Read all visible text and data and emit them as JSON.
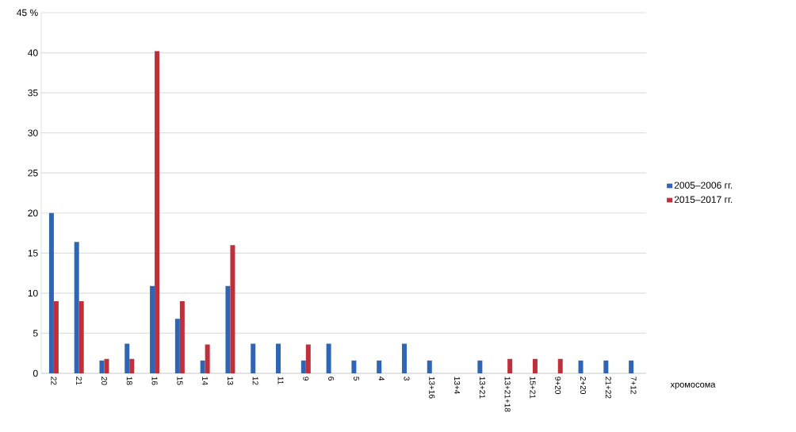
{
  "chart_data": {
    "type": "bar",
    "xlabel": "хромосома",
    "categories": [
      "22",
      "21",
      "20",
      "18",
      "16",
      "15",
      "14",
      "13",
      "12",
      "11",
      "9",
      "6",
      "5",
      "4",
      "3",
      "13+16",
      "13+4",
      "13+21",
      "13+21+18",
      "15+21",
      "9+20",
      "2+20",
      "21+22",
      "7+12"
    ],
    "series": [
      {
        "name": "2005–2006 гг.",
        "color": "#2f65b5",
        "values": [
          20,
          16.4,
          1.6,
          3.7,
          10.9,
          6.8,
          1.6,
          10.9,
          3.7,
          3.7,
          1.6,
          3.7,
          1.6,
          1.6,
          3.7,
          1.6,
          null,
          1.6,
          null,
          null,
          null,
          1.6,
          1.6,
          1.6
        ]
      },
      {
        "name": "2015–2017 гг.",
        "color": "#c0303b",
        "values": [
          9,
          9,
          1.8,
          1.8,
          40.2,
          9,
          3.6,
          16,
          null,
          null,
          3.6,
          null,
          null,
          null,
          null,
          null,
          null,
          null,
          1.8,
          1.8,
          1.8,
          null,
          null,
          null
        ]
      }
    ],
    "ylim": [
      0,
      45
    ],
    "yticks": [
      0,
      5,
      10,
      15,
      20,
      25,
      30,
      35,
      40,
      {
        "value": 45,
        "label": "45 %"
      }
    ],
    "grid": "y",
    "legend": "right"
  }
}
